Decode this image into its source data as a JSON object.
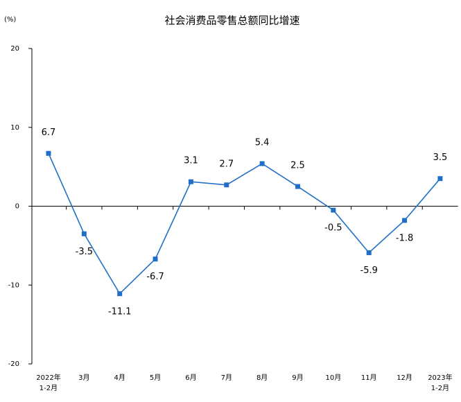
{
  "chart_data": {
    "type": "line",
    "title": "社会消费品零售总额同比增速",
    "y_unit": "(%)",
    "categories": [
      "2022年\n1-2月",
      "3月",
      "4月",
      "5月",
      "6月",
      "7月",
      "8月",
      "9月",
      "10月",
      "11月",
      "12月",
      "2023年\n1-2月"
    ],
    "series": [
      {
        "name": "社会消费品零售总额同比增速",
        "color": "#1f6fc8",
        "values": [
          6.7,
          -3.5,
          -11.1,
          -6.7,
          3.1,
          2.7,
          5.4,
          2.5,
          -0.5,
          -5.9,
          -1.8,
          3.5
        ]
      }
    ],
    "ylim": [
      -20,
      20
    ],
    "yticks": [
      -20,
      -10,
      0,
      10,
      20
    ],
    "grid": false
  }
}
